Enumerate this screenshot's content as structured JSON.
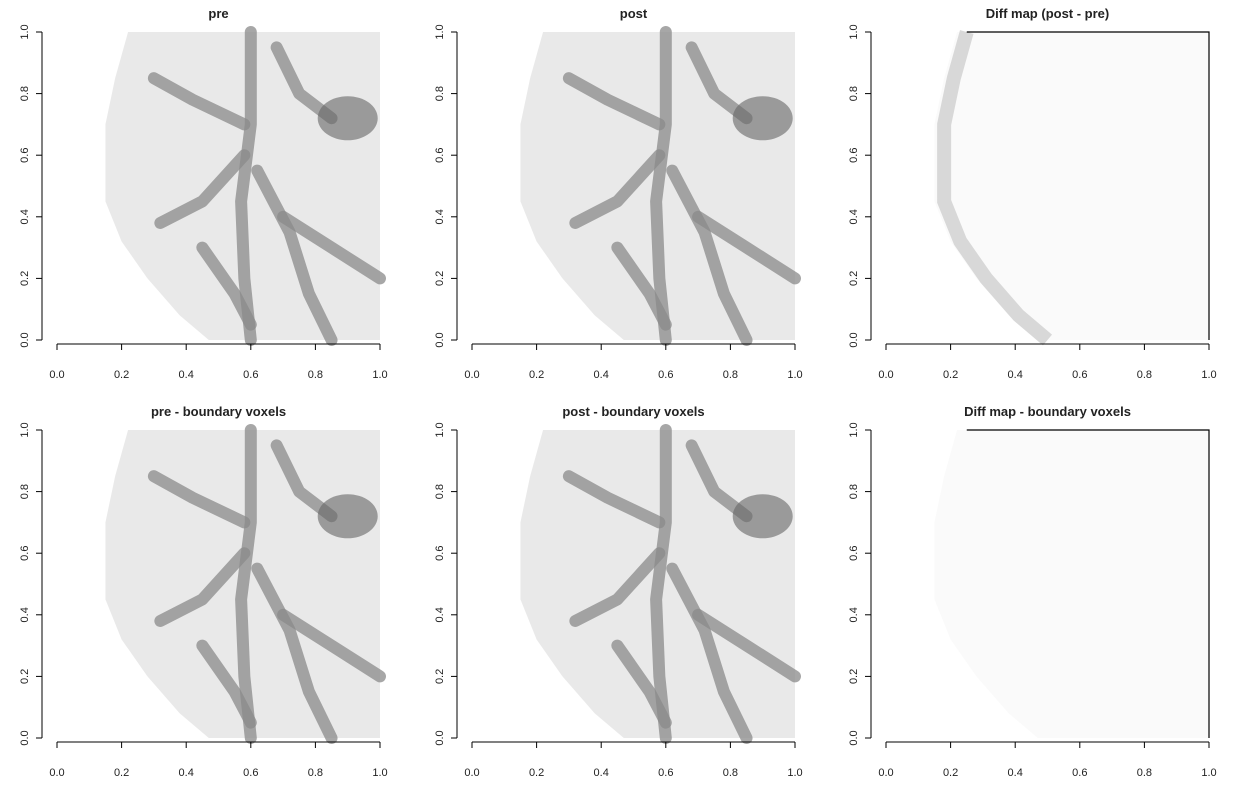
{
  "chart_data": [
    {
      "type": "image",
      "title": "pre",
      "xlim": [
        0,
        1
      ],
      "ylim": [
        0,
        1
      ],
      "xticks": [
        {
          "value": 0,
          "label": "0.0"
        },
        0.2,
        0.4,
        0.6,
        0.8,
        {
          "value": 1,
          "label": "1.0"
        }
      ],
      "yticks": [
        {
          "value": 0,
          "label": "0.0"
        },
        0.2,
        0.4,
        0.6,
        0.8,
        {
          "value": 1,
          "label": "1.0"
        }
      ]
    },
    {
      "type": "image",
      "title": "post",
      "xlim": [
        0,
        1
      ],
      "ylim": [
        0,
        1
      ],
      "xticks": [
        {
          "value": 0,
          "label": "0.0"
        },
        0.2,
        0.4,
        0.6,
        0.8,
        {
          "value": 1,
          "label": "1.0"
        }
      ],
      "yticks": [
        {
          "value": 0,
          "label": "0.0"
        },
        0.2,
        0.4,
        0.6,
        0.8,
        {
          "value": 1,
          "label": "1.0"
        }
      ]
    },
    {
      "type": "image",
      "title": "Diff map (post - pre)",
      "xlim": [
        0,
        1
      ],
      "ylim": [
        0,
        1
      ],
      "xticks": [
        {
          "value": 0,
          "label": "0.0"
        },
        0.2,
        0.4,
        0.6,
        0.8,
        {
          "value": 1,
          "label": "1.0"
        }
      ],
      "yticks": [
        {
          "value": 0,
          "label": "0.0"
        },
        0.2,
        0.4,
        0.6,
        0.8,
        {
          "value": 1,
          "label": "1.0"
        }
      ]
    },
    {
      "type": "image",
      "title": "pre -  boundary voxels",
      "xlim": [
        0,
        1
      ],
      "ylim": [
        0,
        1
      ],
      "xticks": [
        {
          "value": 0,
          "label": "0.0"
        },
        0.2,
        0.4,
        0.6,
        0.8,
        {
          "value": 1,
          "label": "1.0"
        }
      ],
      "yticks": [
        {
          "value": 0,
          "label": "0.0"
        },
        0.2,
        0.4,
        0.6,
        0.8,
        {
          "value": 1,
          "label": "1.0"
        }
      ]
    },
    {
      "type": "image",
      "title": "post - boundary voxels",
      "xlim": [
        0,
        1
      ],
      "ylim": [
        0,
        1
      ],
      "xticks": [
        {
          "value": 0,
          "label": "0.0"
        },
        0.2,
        0.4,
        0.6,
        0.8,
        {
          "value": 1,
          "label": "1.0"
        }
      ],
      "yticks": [
        {
          "value": 0,
          "label": "0.0"
        },
        0.2,
        0.4,
        0.6,
        0.8,
        {
          "value": 1,
          "label": "1.0"
        }
      ]
    },
    {
      "type": "image",
      "title": "Diff map - boundary voxels",
      "xlim": [
        0,
        1
      ],
      "ylim": [
        0,
        1
      ],
      "xticks": [
        {
          "value": 0,
          "label": "0.0"
        },
        0.2,
        0.4,
        0.6,
        0.8,
        {
          "value": 1,
          "label": "1.0"
        }
      ],
      "yticks": [
        {
          "value": 0,
          "label": "0.0"
        },
        0.2,
        0.4,
        0.6,
        0.8,
        {
          "value": 1,
          "label": "1.0"
        }
      ]
    }
  ]
}
